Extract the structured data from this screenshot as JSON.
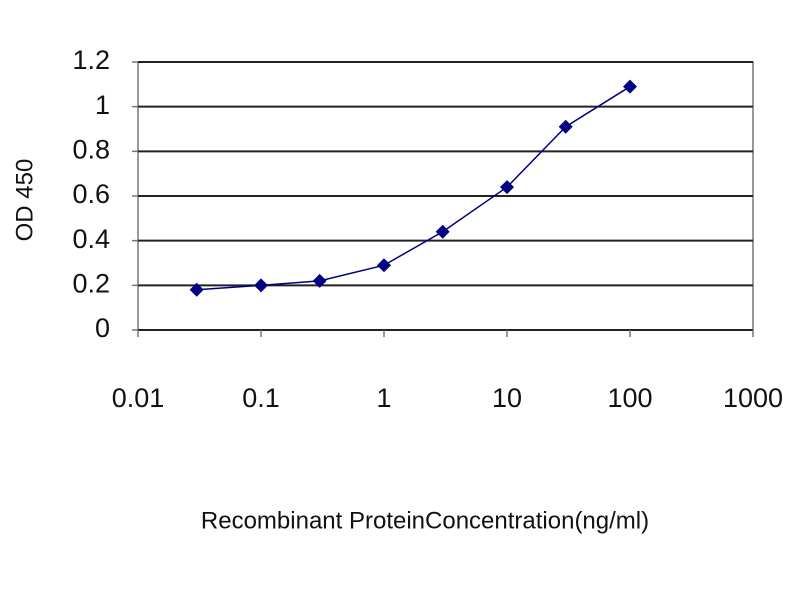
{
  "chart_data": {
    "type": "line",
    "x_label": "Recombinant ProteinConcentration(ng/ml)",
    "y_label": "OD 450",
    "x": [
      0.03,
      0.1,
      0.3,
      1,
      3,
      10,
      30,
      100
    ],
    "series": [
      {
        "color": "#000080",
        "values": [
          0.18,
          0.2,
          0.22,
          0.29,
          0.44,
          0.64,
          0.91,
          1.09
        ]
      }
    ],
    "xscale": "log",
    "xlim": [
      0.01,
      1000
    ],
    "xticks": [
      0.01,
      0.1,
      1,
      10,
      100,
      1000
    ],
    "ylim": [
      0,
      1.2
    ],
    "yticks": [
      0,
      0.2,
      0.4,
      0.6,
      0.8,
      1,
      1.2
    ],
    "grid": true
  }
}
